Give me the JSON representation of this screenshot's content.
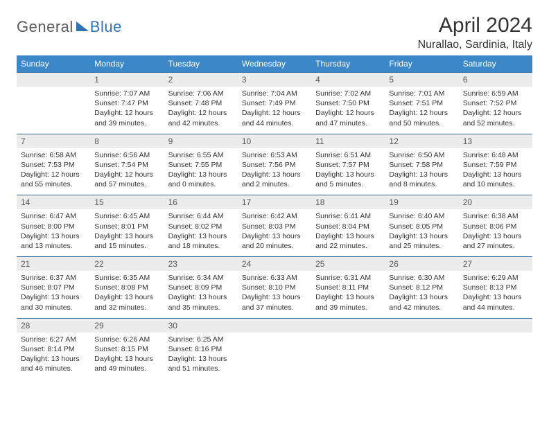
{
  "logo": {
    "part1": "General",
    "part2": "Blue"
  },
  "title": "April 2024",
  "location": "Nurallao, Sardinia, Italy",
  "colors": {
    "header_bg": "#3b87c8",
    "header_text": "#ffffff",
    "daynum_bg": "#ececec",
    "daynum_text": "#555555",
    "row_border": "#2f6aa5",
    "body_text": "#333333",
    "logo_gray": "#5a5a5a",
    "logo_blue": "#2f73b8",
    "page_bg": "#ffffff"
  },
  "dow": [
    "Sunday",
    "Monday",
    "Tuesday",
    "Wednesday",
    "Thursday",
    "Friday",
    "Saturday"
  ],
  "weeks": [
    {
      "nums": [
        "",
        "1",
        "2",
        "3",
        "4",
        "5",
        "6"
      ],
      "cells": [
        null,
        {
          "sunrise": "7:07 AM",
          "sunset": "7:47 PM",
          "daylight": "12 hours and 39 minutes."
        },
        {
          "sunrise": "7:06 AM",
          "sunset": "7:48 PM",
          "daylight": "12 hours and 42 minutes."
        },
        {
          "sunrise": "7:04 AM",
          "sunset": "7:49 PM",
          "daylight": "12 hours and 44 minutes."
        },
        {
          "sunrise": "7:02 AM",
          "sunset": "7:50 PM",
          "daylight": "12 hours and 47 minutes."
        },
        {
          "sunrise": "7:01 AM",
          "sunset": "7:51 PM",
          "daylight": "12 hours and 50 minutes."
        },
        {
          "sunrise": "6:59 AM",
          "sunset": "7:52 PM",
          "daylight": "12 hours and 52 minutes."
        }
      ]
    },
    {
      "nums": [
        "7",
        "8",
        "9",
        "10",
        "11",
        "12",
        "13"
      ],
      "cells": [
        {
          "sunrise": "6:58 AM",
          "sunset": "7:53 PM",
          "daylight": "12 hours and 55 minutes."
        },
        {
          "sunrise": "6:56 AM",
          "sunset": "7:54 PM",
          "daylight": "12 hours and 57 minutes."
        },
        {
          "sunrise": "6:55 AM",
          "sunset": "7:55 PM",
          "daylight": "13 hours and 0 minutes."
        },
        {
          "sunrise": "6:53 AM",
          "sunset": "7:56 PM",
          "daylight": "13 hours and 2 minutes."
        },
        {
          "sunrise": "6:51 AM",
          "sunset": "7:57 PM",
          "daylight": "13 hours and 5 minutes."
        },
        {
          "sunrise": "6:50 AM",
          "sunset": "7:58 PM",
          "daylight": "13 hours and 8 minutes."
        },
        {
          "sunrise": "6:48 AM",
          "sunset": "7:59 PM",
          "daylight": "13 hours and 10 minutes."
        }
      ]
    },
    {
      "nums": [
        "14",
        "15",
        "16",
        "17",
        "18",
        "19",
        "20"
      ],
      "cells": [
        {
          "sunrise": "6:47 AM",
          "sunset": "8:00 PM",
          "daylight": "13 hours and 13 minutes."
        },
        {
          "sunrise": "6:45 AM",
          "sunset": "8:01 PM",
          "daylight": "13 hours and 15 minutes."
        },
        {
          "sunrise": "6:44 AM",
          "sunset": "8:02 PM",
          "daylight": "13 hours and 18 minutes."
        },
        {
          "sunrise": "6:42 AM",
          "sunset": "8:03 PM",
          "daylight": "13 hours and 20 minutes."
        },
        {
          "sunrise": "6:41 AM",
          "sunset": "8:04 PM",
          "daylight": "13 hours and 22 minutes."
        },
        {
          "sunrise": "6:40 AM",
          "sunset": "8:05 PM",
          "daylight": "13 hours and 25 minutes."
        },
        {
          "sunrise": "6:38 AM",
          "sunset": "8:06 PM",
          "daylight": "13 hours and 27 minutes."
        }
      ]
    },
    {
      "nums": [
        "21",
        "22",
        "23",
        "24",
        "25",
        "26",
        "27"
      ],
      "cells": [
        {
          "sunrise": "6:37 AM",
          "sunset": "8:07 PM",
          "daylight": "13 hours and 30 minutes."
        },
        {
          "sunrise": "6:35 AM",
          "sunset": "8:08 PM",
          "daylight": "13 hours and 32 minutes."
        },
        {
          "sunrise": "6:34 AM",
          "sunset": "8:09 PM",
          "daylight": "13 hours and 35 minutes."
        },
        {
          "sunrise": "6:33 AM",
          "sunset": "8:10 PM",
          "daylight": "13 hours and 37 minutes."
        },
        {
          "sunrise": "6:31 AM",
          "sunset": "8:11 PM",
          "daylight": "13 hours and 39 minutes."
        },
        {
          "sunrise": "6:30 AM",
          "sunset": "8:12 PM",
          "daylight": "13 hours and 42 minutes."
        },
        {
          "sunrise": "6:29 AM",
          "sunset": "8:13 PM",
          "daylight": "13 hours and 44 minutes."
        }
      ]
    },
    {
      "nums": [
        "28",
        "29",
        "30",
        "",
        "",
        "",
        ""
      ],
      "cells": [
        {
          "sunrise": "6:27 AM",
          "sunset": "8:14 PM",
          "daylight": "13 hours and 46 minutes."
        },
        {
          "sunrise": "6:26 AM",
          "sunset": "8:15 PM",
          "daylight": "13 hours and 49 minutes."
        },
        {
          "sunrise": "6:25 AM",
          "sunset": "8:16 PM",
          "daylight": "13 hours and 51 minutes."
        },
        null,
        null,
        null,
        null
      ]
    }
  ],
  "labels": {
    "sunrise": "Sunrise:",
    "sunset": "Sunset:",
    "daylight": "Daylight:"
  }
}
